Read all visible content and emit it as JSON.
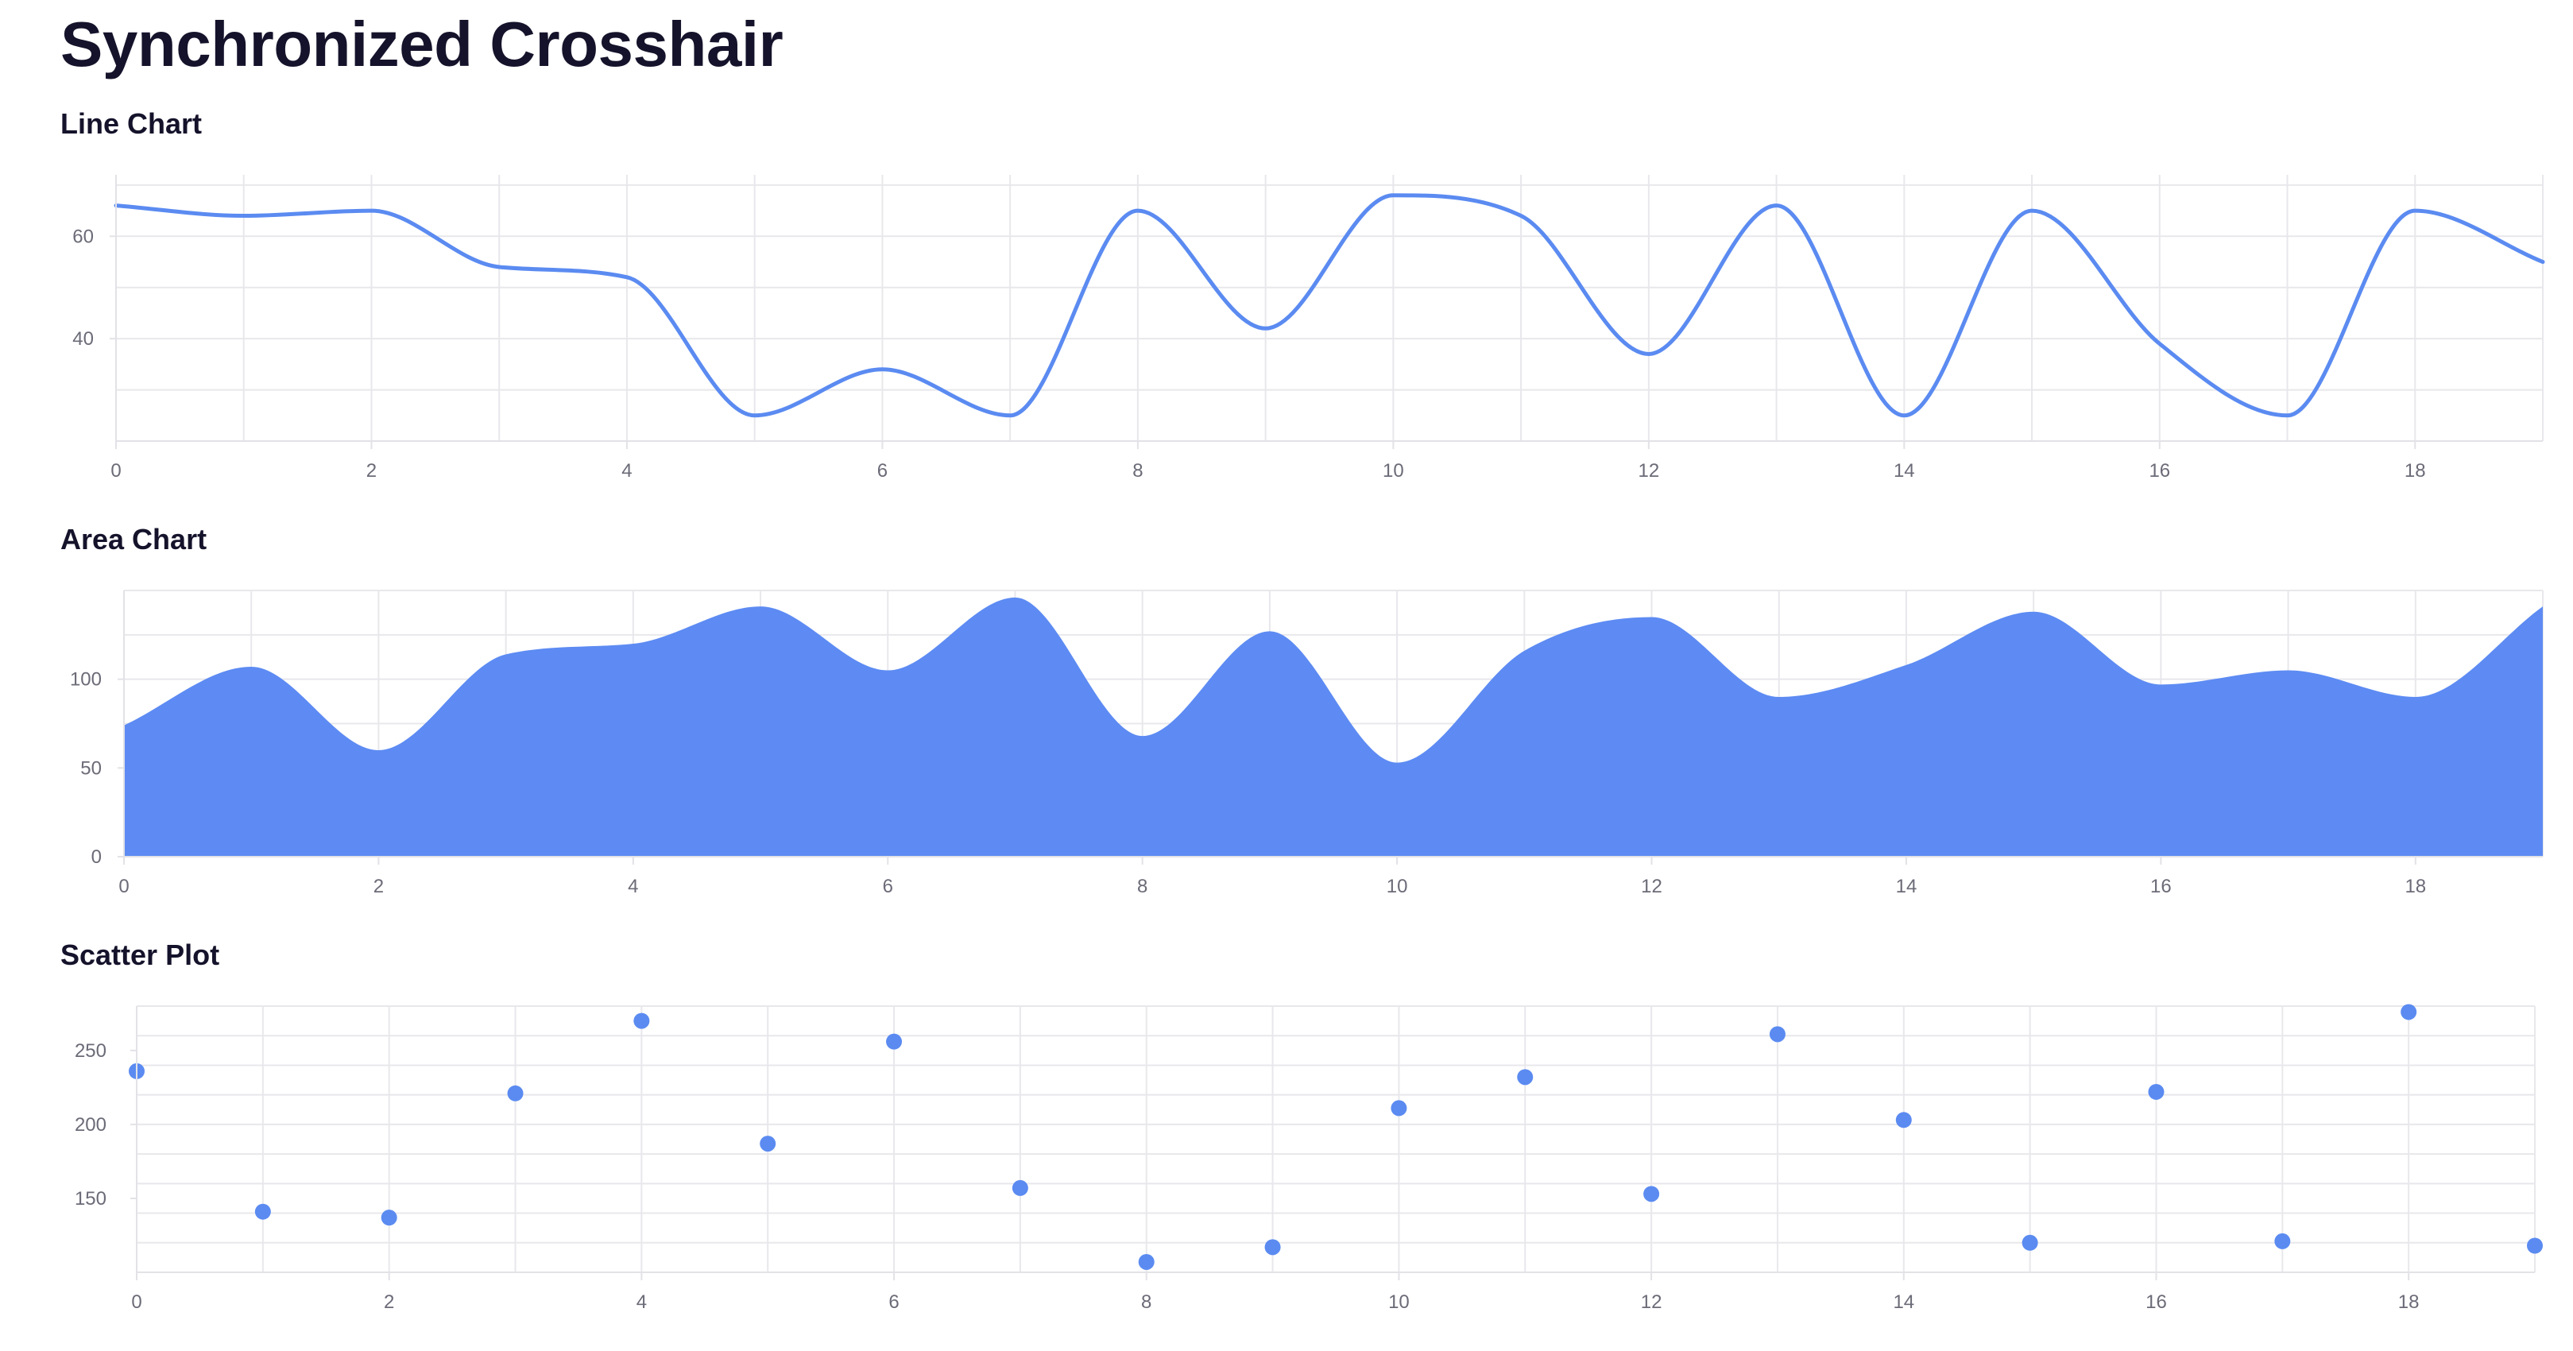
{
  "page": {
    "title": "Synchronized Crosshair"
  },
  "colors": {
    "accent": "#5b8bf1",
    "line": "#5b8bf1",
    "area_fill": "#5d8bf3",
    "grid": "#e8e8ec",
    "axis": "#e2e2e7",
    "tick_text": "#6b6b78",
    "title_text": "#15132b"
  },
  "chart_data": [
    {
      "id": "line",
      "type": "line",
      "title": "Line Chart",
      "curve": "smooth",
      "grid": true,
      "x": [
        0,
        1,
        2,
        3,
        4,
        5,
        6,
        7,
        8,
        9,
        10,
        11,
        12,
        13,
        14,
        15,
        16,
        17,
        18,
        19
      ],
      "series": [
        {
          "values": [
            66,
            64,
            65,
            54,
            52,
            25,
            34,
            25,
            65,
            42,
            68,
            64,
            37,
            66,
            25,
            65,
            39,
            25,
            65,
            55
          ]
        }
      ],
      "xlim": [
        0,
        19
      ],
      "ylim": [
        20,
        72
      ],
      "xticks": [
        0,
        2,
        4,
        6,
        8,
        10,
        12,
        14,
        16,
        18
      ],
      "yticks": [
        40,
        60
      ],
      "xgrid": [
        0,
        1,
        2,
        3,
        4,
        5,
        6,
        7,
        8,
        9,
        10,
        11,
        12,
        13,
        14,
        15,
        16,
        17,
        18,
        19
      ],
      "ygrid": [
        20,
        30,
        40,
        50,
        60,
        70
      ]
    },
    {
      "id": "area",
      "type": "area",
      "title": "Area Chart",
      "curve": "smooth",
      "grid": true,
      "x": [
        0,
        1,
        2,
        3,
        4,
        5,
        6,
        7,
        8,
        9,
        10,
        11,
        12,
        13,
        14,
        15,
        16,
        17,
        18,
        19
      ],
      "series": [
        {
          "values": [
            74,
            107,
            60,
            114,
            120,
            141,
            105,
            146,
            68,
            127,
            53,
            116,
            135,
            90,
            108,
            138,
            97,
            105,
            90,
            141
          ]
        }
      ],
      "xlim": [
        0,
        19
      ],
      "ylim": [
        0,
        150
      ],
      "xticks": [
        0,
        2,
        4,
        6,
        8,
        10,
        12,
        14,
        16,
        18
      ],
      "yticks": [
        0,
        50,
        100
      ],
      "xgrid": [
        0,
        1,
        2,
        3,
        4,
        5,
        6,
        7,
        8,
        9,
        10,
        11,
        12,
        13,
        14,
        15,
        16,
        17,
        18,
        19
      ],
      "ygrid": [
        0,
        25,
        50,
        75,
        100,
        125,
        150
      ]
    },
    {
      "id": "scatter",
      "type": "scatter",
      "title": "Scatter Plot",
      "grid": true,
      "x": [
        0,
        1,
        2,
        3,
        4,
        5,
        6,
        7,
        8,
        9,
        10,
        11,
        12,
        13,
        14,
        15,
        16,
        17,
        18,
        19
      ],
      "series": [
        {
          "values": [
            236,
            141,
            137,
            221,
            270,
            187,
            256,
            157,
            107,
            117,
            211,
            232,
            153,
            261,
            203,
            120,
            222,
            121,
            276,
            118
          ]
        }
      ],
      "xlim": [
        0,
        19
      ],
      "ylim": [
        100,
        280
      ],
      "xticks": [
        0,
        2,
        4,
        6,
        8,
        10,
        12,
        14,
        16,
        18
      ],
      "yticks": [
        150,
        200,
        250
      ],
      "xgrid": [
        0,
        1,
        2,
        3,
        4,
        5,
        6,
        7,
        8,
        9,
        10,
        11,
        12,
        13,
        14,
        15,
        16,
        17,
        18,
        19
      ],
      "ygrid": [
        100,
        120,
        140,
        160,
        180,
        200,
        220,
        240,
        260,
        280
      ]
    }
  ]
}
